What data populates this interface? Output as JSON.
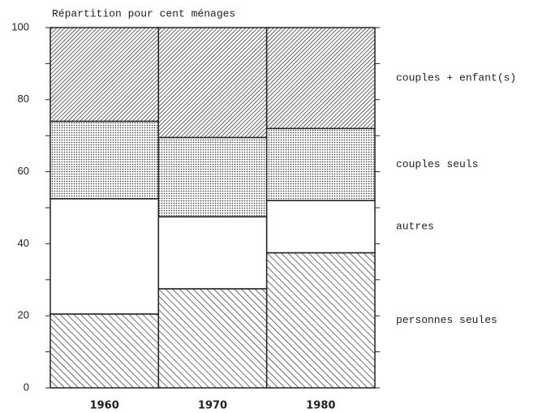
{
  "chart_data": {
    "type": "stacked_bar",
    "title": "Répartition pour cent ménages",
    "categories": [
      "1960",
      "1970",
      "1980"
    ],
    "series": [
      {
        "name": "personnes seules",
        "color": "#222",
        "pattern": "hatch-back",
        "values": [
          20.5,
          27.5,
          37.5
        ]
      },
      {
        "name": "autres",
        "color": "#222",
        "pattern": "none",
        "values": [
          32,
          20,
          14.5
        ]
      },
      {
        "name": "couples seuls",
        "color": "#222",
        "pattern": "dots",
        "values": [
          21.5,
          22,
          20
        ]
      },
      {
        "name": "couples + enfant(s)",
        "color": "#222",
        "pattern": "hatch-forward",
        "values": [
          26,
          30.5,
          28
        ]
      }
    ],
    "ylim": [
      0,
      100
    ],
    "yticks": [
      0,
      20,
      40,
      60,
      80,
      100
    ],
    "yticks_minor": [
      10,
      30,
      50,
      70,
      90
    ]
  }
}
